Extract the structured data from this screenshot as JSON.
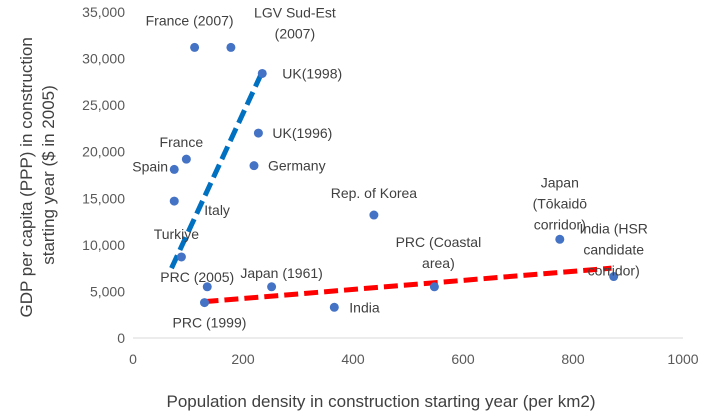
{
  "chart_data": {
    "type": "scatter",
    "xlabel": "Population density in construction starting year (per km2)",
    "ylabel": [
      "GDP per capita (PPP) in construction",
      "starting year ($ in 2005)"
    ],
    "xlim": [
      0,
      1000
    ],
    "ylim": [
      0,
      35000
    ],
    "xticks": [
      0,
      200,
      400,
      600,
      800,
      1000
    ],
    "yticks": [
      0,
      5000,
      10000,
      15000,
      20000,
      25000,
      30000,
      35000
    ],
    "ytick_labels": [
      "0",
      "5,000",
      "10,000",
      "15,000",
      "20,000",
      "25,000",
      "30,000",
      "35,000"
    ],
    "grid": false,
    "marker_color": "#4472C4",
    "points": [
      {
        "label": [
          "France (2007)"
        ],
        "x": 112,
        "y": 31200
      },
      {
        "label": [
          "LGV Sud-Est",
          "(2007)"
        ],
        "x": 178,
        "y": 31200
      },
      {
        "label": [
          "UK(1998)"
        ],
        "x": 235,
        "y": 28400
      },
      {
        "label": [
          "UK(1996)"
        ],
        "x": 228,
        "y": 22000
      },
      {
        "label": [
          "France"
        ],
        "x": 97,
        "y": 19200
      },
      {
        "label": [
          "Spain"
        ],
        "x": 75,
        "y": 18100
      },
      {
        "label": [
          "Germany"
        ],
        "x": 220,
        "y": 18500
      },
      {
        "label": [
          "Italy"
        ],
        "x": 75,
        "y": 14700
      },
      {
        "label": [
          "Rep. of Korea"
        ],
        "x": 438,
        "y": 13200
      },
      {
        "label": [
          "Japan",
          "(Tōkaidō",
          "corridor)"
        ],
        "x": 776,
        "y": 10600
      },
      {
        "label": [
          "India (HSR",
          "candidate",
          "corridor)"
        ],
        "x": 874,
        "y": 6600
      },
      {
        "label": [
          "Turkiye"
        ],
        "x": 88,
        "y": 8700
      },
      {
        "label": [
          "PRC (Coastal",
          "area)"
        ],
        "x": 548,
        "y": 5500
      },
      {
        "label": [
          "PRC (2005)"
        ],
        "x": 135,
        "y": 5500
      },
      {
        "label": [
          "Japan (1961)"
        ],
        "x": 252,
        "y": 5500
      },
      {
        "label": [
          "PRC (1999)"
        ],
        "x": 130,
        "y": 3800
      },
      {
        "label": [
          "India"
        ],
        "x": 366,
        "y": 3300
      }
    ],
    "trendlines": [
      {
        "color": "#0070C0",
        "style": "dashed",
        "x": [
          70,
          232
        ],
        "y": [
          7500,
          28200
        ]
      },
      {
        "color": "#FF0000",
        "style": "dashed",
        "x": [
          130,
          870
        ],
        "y": [
          3900,
          7500
        ]
      }
    ]
  }
}
